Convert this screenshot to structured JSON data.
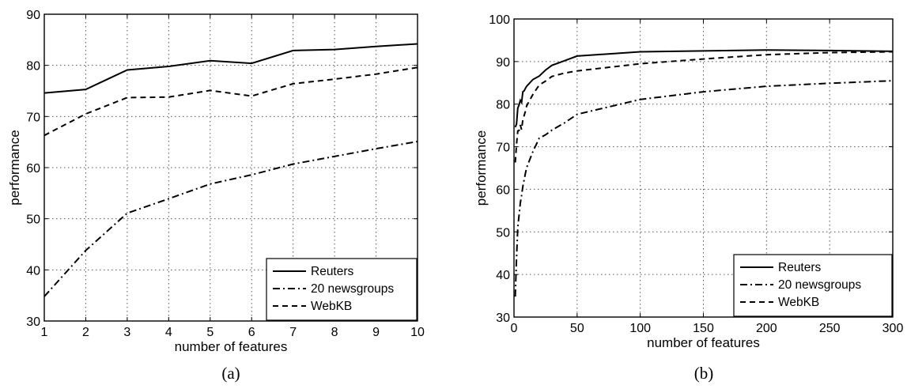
{
  "chart_data": [
    {
      "type": "line",
      "caption": "(a)",
      "xlabel": "number of features",
      "ylabel": "performance",
      "xlim": [
        1,
        10
      ],
      "ylim": [
        30,
        90
      ],
      "xticks": [
        1,
        2,
        3,
        4,
        5,
        6,
        7,
        8,
        9,
        10
      ],
      "yticks": [
        30,
        40,
        50,
        60,
        70,
        80,
        90
      ],
      "grid": true,
      "legend_position": "bottom-right",
      "series": [
        {
          "name": "Reuters",
          "style": "solid",
          "x": [
            1,
            2,
            3,
            4,
            5,
            6,
            7,
            8,
            9,
            10
          ],
          "y": [
            74.6,
            75.3,
            79.1,
            79.8,
            80.9,
            80.4,
            82.9,
            83.1,
            83.7,
            84.2
          ]
        },
        {
          "name": "20 newsgroups",
          "style": "dashdot",
          "x": [
            1,
            2,
            3,
            4,
            5,
            6,
            7,
            8,
            9,
            10
          ],
          "y": [
            34.8,
            43.8,
            51.1,
            53.9,
            56.8,
            58.6,
            60.7,
            62.2,
            63.7,
            65.1
          ]
        },
        {
          "name": "WebKB",
          "style": "dashed",
          "x": [
            1,
            2,
            3,
            4,
            5,
            6,
            7,
            8,
            9,
            10
          ],
          "y": [
            66.3,
            70.5,
            73.7,
            73.8,
            75.1,
            74.0,
            76.4,
            77.3,
            78.3,
            79.6
          ]
        }
      ]
    },
    {
      "type": "line",
      "caption": "(b)",
      "xlabel": "number of features",
      "ylabel": "performance",
      "xlim": [
        0,
        300
      ],
      "ylim": [
        30,
        100
      ],
      "xticks": [
        0,
        50,
        100,
        150,
        200,
        250,
        300
      ],
      "yticks": [
        30,
        40,
        50,
        60,
        70,
        80,
        90,
        100
      ],
      "grid": true,
      "legend_position": "bottom-right",
      "series": [
        {
          "name": "Reuters",
          "style": "solid",
          "x": [
            1,
            2,
            3,
            4,
            5,
            6,
            7,
            8,
            9,
            10,
            15,
            20,
            25,
            30,
            40,
            50,
            100,
            150,
            200,
            250,
            300
          ],
          "y": [
            74.6,
            75.3,
            79.1,
            79.8,
            80.9,
            80.4,
            82.9,
            83.1,
            83.7,
            84.2,
            85.8,
            86.6,
            88.0,
            89.1,
            90.2,
            91.3,
            92.3,
            92.5,
            92.7,
            92.6,
            92.4
          ]
        },
        {
          "name": "20 newsgroups",
          "style": "dashdot",
          "x": [
            1,
            2,
            3,
            4,
            5,
            6,
            7,
            8,
            9,
            10,
            15,
            20,
            25,
            30,
            40,
            50,
            100,
            150,
            200,
            250,
            300
          ],
          "y": [
            34.8,
            43.8,
            51.1,
            53.9,
            56.8,
            58.6,
            60.7,
            62.2,
            63.7,
            65.1,
            68.9,
            72.0,
            72.8,
            73.9,
            75.6,
            77.6,
            81.1,
            82.9,
            84.2,
            84.9,
            85.5
          ]
        },
        {
          "name": "WebKB",
          "style": "dashed",
          "x": [
            1,
            2,
            3,
            4,
            5,
            6,
            7,
            8,
            9,
            10,
            15,
            20,
            25,
            30,
            40,
            50,
            100,
            150,
            200,
            250,
            300
          ],
          "y": [
            66.3,
            70.5,
            73.7,
            73.8,
            75.1,
            74.0,
            76.4,
            77.3,
            78.3,
            79.6,
            82.3,
            84.5,
            85.4,
            86.5,
            87.3,
            87.8,
            89.5,
            90.6,
            91.6,
            92.1,
            92.3
          ]
        }
      ]
    }
  ]
}
